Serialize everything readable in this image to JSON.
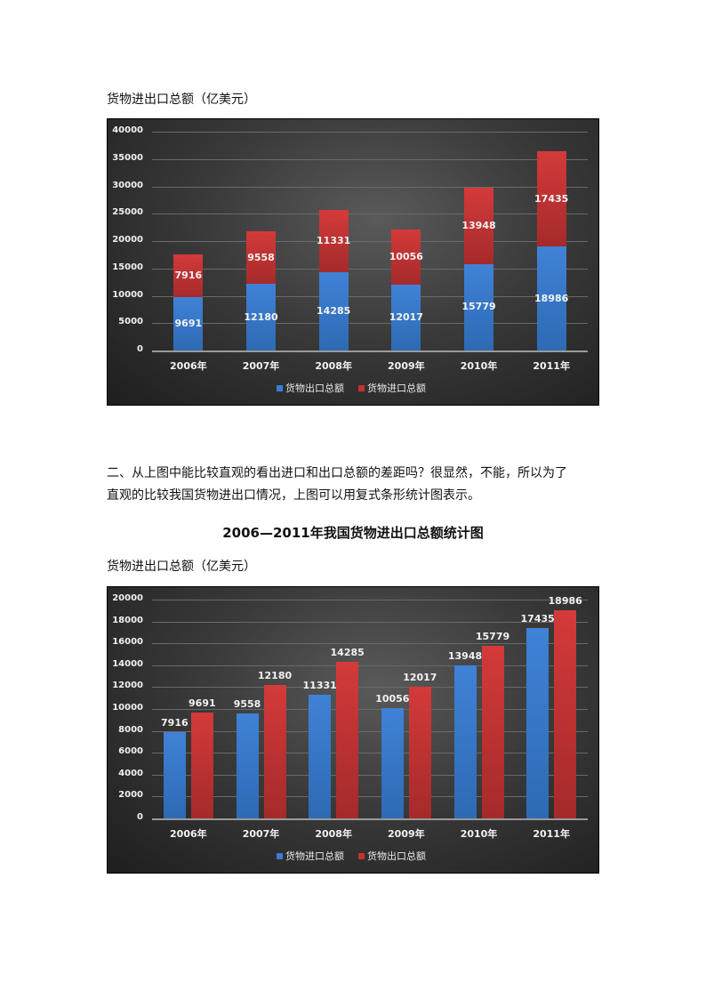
{
  "chart1_label": "货物进出口总额（亿美元）",
  "paragraph_line1": "二、从上图中能比较直观的看出进口和出口总额的差距吗？很显然，不能，所以为了",
  "paragraph_line2": "直观的比较我国货物进出口情况，上图可以用复式条形统计图表示。",
  "chart2_title": "2006—2011年我国货物进出口总额统计图",
  "chart2_label": "货物进出口总额（亿美元）",
  "colors": {
    "blue": "#3a7bd5",
    "red": "#c8312f",
    "background": "#2e2e2e"
  },
  "chart_data": [
    {
      "type": "bar",
      "stacked": true,
      "title": "货物进出口总额（亿美元）",
      "categories": [
        "2006年",
        "2007年",
        "2008年",
        "2009年",
        "2010年",
        "2011年"
      ],
      "series": [
        {
          "name": "货物出口总额",
          "color": "#3a7bd5",
          "values": [
            9691,
            12180,
            14285,
            12017,
            15779,
            18986
          ]
        },
        {
          "name": "货物进口总额",
          "color": "#c8312f",
          "values": [
            7916,
            9558,
            11331,
            10056,
            13948,
            17435
          ]
        }
      ],
      "yticks": [
        "0",
        "5000",
        "10000",
        "15000",
        "20000",
        "25000",
        "30000",
        "35000",
        "40000"
      ],
      "ylim": [
        0,
        40000
      ],
      "grid": true,
      "legend_position": "bottom"
    },
    {
      "type": "bar",
      "stacked": false,
      "title": "2006—2011年我国货物进出口总额统计图",
      "categories": [
        "2006年",
        "2007年",
        "2008年",
        "2009年",
        "2010年",
        "2011年"
      ],
      "series": [
        {
          "name": "货物进口总额",
          "color": "#3a7bd5",
          "values": [
            7916,
            9558,
            11331,
            10056,
            13948,
            17435
          ]
        },
        {
          "name": "货物出口总额",
          "color": "#c8312f",
          "values": [
            9691,
            12180,
            14285,
            12017,
            15779,
            18986
          ]
        }
      ],
      "yticks": [
        "0",
        "2000",
        "4000",
        "6000",
        "8000",
        "10000",
        "12000",
        "14000",
        "16000",
        "18000",
        "20000"
      ],
      "ylim": [
        0,
        20000
      ],
      "grid": true,
      "legend_position": "bottom"
    }
  ]
}
